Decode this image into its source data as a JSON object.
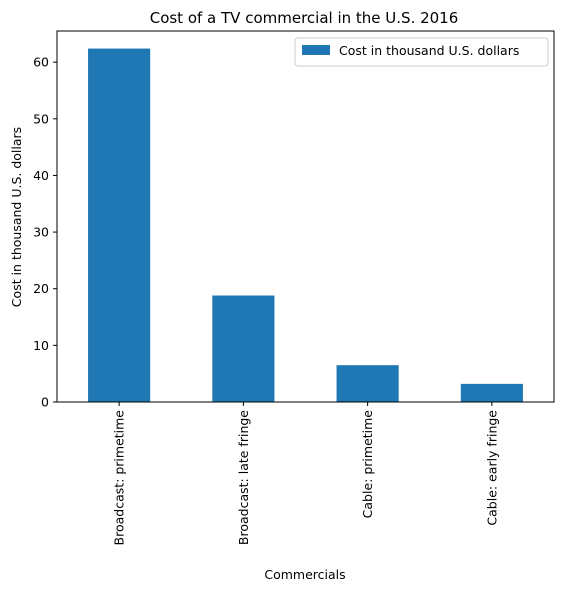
{
  "chart_data": {
    "type": "bar",
    "title": "Cost of a TV commercial in the U.S. 2016",
    "xlabel": "Commercials",
    "ylabel": "Cost in thousand U.S. dollars",
    "categories": [
      "Broadcast: primetime",
      "Broadcast: late fringe",
      "Cable: primetime",
      "Cable: early fringe"
    ],
    "series": [
      {
        "name": "Cost in thousand U.S. dollars",
        "values": [
          62.4,
          18.8,
          6.5,
          3.2
        ],
        "color": "#1f77b4"
      }
    ],
    "ylim": [
      0,
      65.5
    ],
    "yticks": [
      0,
      10,
      20,
      30,
      40,
      50,
      60
    ],
    "grid": false,
    "legend_position": "upper-right"
  }
}
